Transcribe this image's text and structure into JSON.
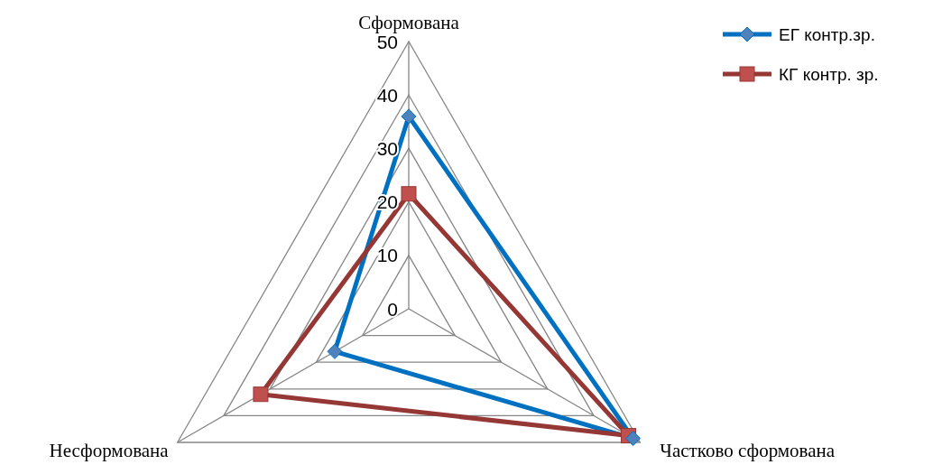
{
  "chart_data": {
    "type": "radar",
    "categories": [
      "Сформована",
      "Частково сформована",
      "Несформована"
    ],
    "series": [
      {
        "name": "ЕГ контр.зр.",
        "color": "#0070c0",
        "marker": "diamond",
        "values": [
          36,
          48.5,
          16
        ]
      },
      {
        "name": "КГ контр. зр.",
        "color": "#953735",
        "marker": "square",
        "values": [
          21.5,
          47.5,
          32
        ]
      }
    ],
    "ylim": [
      0,
      50
    ],
    "yticks": [
      0,
      10,
      20,
      30,
      40,
      50
    ],
    "grid": true,
    "legend": "top right"
  }
}
